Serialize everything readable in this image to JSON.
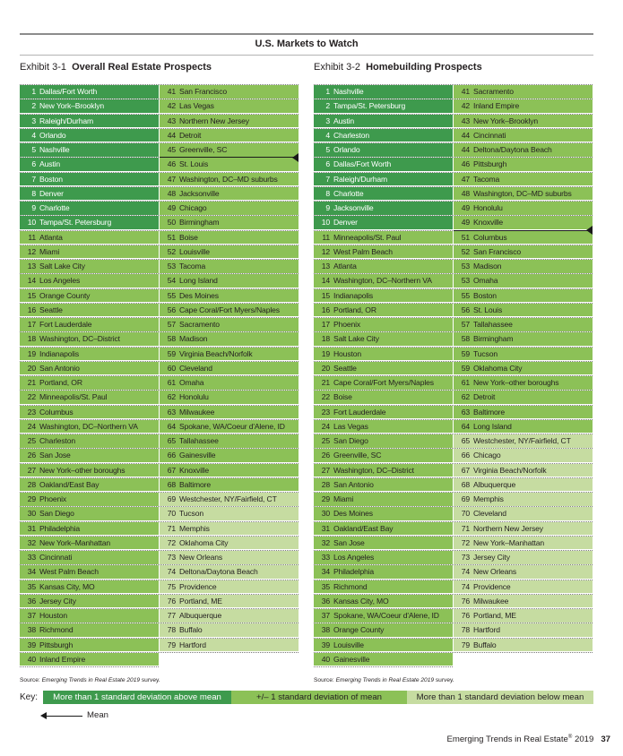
{
  "header": {
    "title": "U.S. Markets to Watch"
  },
  "exhibits": [
    {
      "number": "Exhibit 3-1",
      "title": "Overall Real Estate Prospects",
      "source_prefix": "Source: ",
      "source_title": "Emerging Trends in Real Estate 2019",
      "source_suffix": " survey.",
      "mean_after_rank": 45,
      "markets": [
        {
          "rank": "1",
          "name": "Dallas/Fort Worth",
          "tier": "above"
        },
        {
          "rank": "2",
          "name": "New York–Brooklyn",
          "tier": "above"
        },
        {
          "rank": "3",
          "name": "Raleigh/Durham",
          "tier": "above"
        },
        {
          "rank": "4",
          "name": "Orlando",
          "tier": "above"
        },
        {
          "rank": "5",
          "name": "Nashville",
          "tier": "above"
        },
        {
          "rank": "6",
          "name": "Austin",
          "tier": "above"
        },
        {
          "rank": "7",
          "name": "Boston",
          "tier": "above"
        },
        {
          "rank": "8",
          "name": "Denver",
          "tier": "above"
        },
        {
          "rank": "9",
          "name": "Charlotte",
          "tier": "above"
        },
        {
          "rank": "10",
          "name": "Tampa/St. Petersburg",
          "tier": "above"
        },
        {
          "rank": "11",
          "name": "Atlanta",
          "tier": "mid"
        },
        {
          "rank": "12",
          "name": "Miami",
          "tier": "mid"
        },
        {
          "rank": "13",
          "name": "Salt Lake City",
          "tier": "mid"
        },
        {
          "rank": "14",
          "name": "Los Angeles",
          "tier": "mid"
        },
        {
          "rank": "15",
          "name": "Orange County",
          "tier": "mid"
        },
        {
          "rank": "16",
          "name": "Seattle",
          "tier": "mid"
        },
        {
          "rank": "17",
          "name": "Fort Lauderdale",
          "tier": "mid"
        },
        {
          "rank": "18",
          "name": "Washington, DC–District",
          "tier": "mid"
        },
        {
          "rank": "19",
          "name": "Indianapolis",
          "tier": "mid"
        },
        {
          "rank": "20",
          "name": "San Antonio",
          "tier": "mid"
        },
        {
          "rank": "21",
          "name": "Portland, OR",
          "tier": "mid"
        },
        {
          "rank": "22",
          "name": "Minneapolis/St. Paul",
          "tier": "mid"
        },
        {
          "rank": "23",
          "name": "Columbus",
          "tier": "mid"
        },
        {
          "rank": "24",
          "name": "Washington, DC–Northern VA",
          "tier": "mid"
        },
        {
          "rank": "25",
          "name": "Charleston",
          "tier": "mid"
        },
        {
          "rank": "26",
          "name": "San Jose",
          "tier": "mid"
        },
        {
          "rank": "27",
          "name": "New York–other boroughs",
          "tier": "mid"
        },
        {
          "rank": "28",
          "name": "Oakland/East Bay",
          "tier": "mid"
        },
        {
          "rank": "29",
          "name": "Phoenix",
          "tier": "mid"
        },
        {
          "rank": "30",
          "name": "San Diego",
          "tier": "mid"
        },
        {
          "rank": "31",
          "name": "Philadelphia",
          "tier": "mid"
        },
        {
          "rank": "32",
          "name": "New York–Manhattan",
          "tier": "mid"
        },
        {
          "rank": "33",
          "name": "Cincinnati",
          "tier": "mid"
        },
        {
          "rank": "34",
          "name": "West Palm Beach",
          "tier": "mid"
        },
        {
          "rank": "35",
          "name": "Kansas City, MO",
          "tier": "mid"
        },
        {
          "rank": "36",
          "name": "Jersey City",
          "tier": "mid"
        },
        {
          "rank": "37",
          "name": "Houston",
          "tier": "mid"
        },
        {
          "rank": "38",
          "name": "Richmond",
          "tier": "mid"
        },
        {
          "rank": "39",
          "name": "Pittsburgh",
          "tier": "mid"
        },
        {
          "rank": "40",
          "name": "Inland Empire",
          "tier": "mid"
        },
        {
          "rank": "41",
          "name": "San Francisco",
          "tier": "mid"
        },
        {
          "rank": "42",
          "name": "Las Vegas",
          "tier": "mid"
        },
        {
          "rank": "43",
          "name": "Northern New Jersey",
          "tier": "mid"
        },
        {
          "rank": "44",
          "name": "Detroit",
          "tier": "mid"
        },
        {
          "rank": "45",
          "name": "Greenville, SC",
          "tier": "mid"
        },
        {
          "rank": "46",
          "name": "St. Louis",
          "tier": "mid"
        },
        {
          "rank": "47",
          "name": "Washington, DC–MD suburbs",
          "tier": "mid"
        },
        {
          "rank": "48",
          "name": "Jacksonville",
          "tier": "mid"
        },
        {
          "rank": "49",
          "name": "Chicago",
          "tier": "mid"
        },
        {
          "rank": "50",
          "name": "Birmingham",
          "tier": "mid"
        },
        {
          "rank": "51",
          "name": "Boise",
          "tier": "mid"
        },
        {
          "rank": "52",
          "name": "Louisville",
          "tier": "mid"
        },
        {
          "rank": "53",
          "name": "Tacoma",
          "tier": "mid"
        },
        {
          "rank": "54",
          "name": "Long Island",
          "tier": "mid"
        },
        {
          "rank": "55",
          "name": "Des Moines",
          "tier": "mid"
        },
        {
          "rank": "56",
          "name": "Cape Coral/Fort Myers/Naples",
          "tier": "mid"
        },
        {
          "rank": "57",
          "name": "Sacramento",
          "tier": "mid"
        },
        {
          "rank": "58",
          "name": "Madison",
          "tier": "mid"
        },
        {
          "rank": "59",
          "name": "Virginia Beach/Norfolk",
          "tier": "mid"
        },
        {
          "rank": "60",
          "name": "Cleveland",
          "tier": "mid"
        },
        {
          "rank": "61",
          "name": "Omaha",
          "tier": "mid"
        },
        {
          "rank": "62",
          "name": "Honolulu",
          "tier": "mid"
        },
        {
          "rank": "63",
          "name": "Milwaukee",
          "tier": "mid"
        },
        {
          "rank": "64",
          "name": "Spokane, WA/Coeur d'Alene, ID",
          "tier": "mid"
        },
        {
          "rank": "65",
          "name": "Tallahassee",
          "tier": "mid"
        },
        {
          "rank": "66",
          "name": "Gainesville",
          "tier": "mid"
        },
        {
          "rank": "67",
          "name": "Knoxville",
          "tier": "mid"
        },
        {
          "rank": "68",
          "name": "Baltimore",
          "tier": "mid"
        },
        {
          "rank": "69",
          "name": "Westchester, NY/Fairfield, CT",
          "tier": "below"
        },
        {
          "rank": "70",
          "name": "Tucson",
          "tier": "below"
        },
        {
          "rank": "71",
          "name": "Memphis",
          "tier": "below"
        },
        {
          "rank": "72",
          "name": "Oklahoma City",
          "tier": "below"
        },
        {
          "rank": "73",
          "name": "New Orleans",
          "tier": "below"
        },
        {
          "rank": "74",
          "name": "Deltona/Daytona Beach",
          "tier": "below"
        },
        {
          "rank": "75",
          "name": "Providence",
          "tier": "below"
        },
        {
          "rank": "76",
          "name": "Portland, ME",
          "tier": "below"
        },
        {
          "rank": "77",
          "name": "Albuquerque",
          "tier": "below"
        },
        {
          "rank": "78",
          "name": "Buffalo",
          "tier": "below"
        },
        {
          "rank": "79",
          "name": "Hartford",
          "tier": "below"
        }
      ]
    },
    {
      "number": "Exhibit 3-2",
      "title": "Homebuilding Prospects",
      "source_prefix": "Source: ",
      "source_title": "Emerging Trends in Real Estate 2019",
      "source_suffix": " survey.",
      "mean_after_rank": 49,
      "markets": [
        {
          "rank": "1",
          "name": "Nashville",
          "tier": "above"
        },
        {
          "rank": "2",
          "name": "Tampa/St. Petersburg",
          "tier": "above"
        },
        {
          "rank": "3",
          "name": "Austin",
          "tier": "above"
        },
        {
          "rank": "4",
          "name": "Charleston",
          "tier": "above"
        },
        {
          "rank": "5",
          "name": "Orlando",
          "tier": "above"
        },
        {
          "rank": "6",
          "name": "Dallas/Fort Worth",
          "tier": "above"
        },
        {
          "rank": "7",
          "name": "Raleigh/Durham",
          "tier": "above"
        },
        {
          "rank": "8",
          "name": "Charlotte",
          "tier": "above"
        },
        {
          "rank": "9",
          "name": "Jacksonville",
          "tier": "above"
        },
        {
          "rank": "10",
          "name": "Denver",
          "tier": "above"
        },
        {
          "rank": "11",
          "name": "Minneapolis/St. Paul",
          "tier": "mid"
        },
        {
          "rank": "12",
          "name": "West Palm Beach",
          "tier": "mid"
        },
        {
          "rank": "13",
          "name": "Atlanta",
          "tier": "mid"
        },
        {
          "rank": "14",
          "name": "Washington, DC–Northern VA",
          "tier": "mid"
        },
        {
          "rank": "15",
          "name": "Indianapolis",
          "tier": "mid"
        },
        {
          "rank": "16",
          "name": "Portland, OR",
          "tier": "mid"
        },
        {
          "rank": "17",
          "name": "Phoenix",
          "tier": "mid"
        },
        {
          "rank": "18",
          "name": "Salt Lake City",
          "tier": "mid"
        },
        {
          "rank": "19",
          "name": "Houston",
          "tier": "mid"
        },
        {
          "rank": "20",
          "name": "Seattle",
          "tier": "mid"
        },
        {
          "rank": "21",
          "name": "Cape Coral/Fort Myers/Naples",
          "tier": "mid"
        },
        {
          "rank": "22",
          "name": "Boise",
          "tier": "mid"
        },
        {
          "rank": "23",
          "name": "Fort Lauderdale",
          "tier": "mid"
        },
        {
          "rank": "24",
          "name": "Las Vegas",
          "tier": "mid"
        },
        {
          "rank": "25",
          "name": "San Diego",
          "tier": "mid"
        },
        {
          "rank": "26",
          "name": "Greenville, SC",
          "tier": "mid"
        },
        {
          "rank": "27",
          "name": "Washington, DC–District",
          "tier": "mid"
        },
        {
          "rank": "28",
          "name": "San Antonio",
          "tier": "mid"
        },
        {
          "rank": "29",
          "name": "Miami",
          "tier": "mid"
        },
        {
          "rank": "30",
          "name": "Des Moines",
          "tier": "mid"
        },
        {
          "rank": "31",
          "name": "Oakland/East Bay",
          "tier": "mid"
        },
        {
          "rank": "32",
          "name": "San Jose",
          "tier": "mid"
        },
        {
          "rank": "33",
          "name": "Los Angeles",
          "tier": "mid"
        },
        {
          "rank": "34",
          "name": "Philadelphia",
          "tier": "mid"
        },
        {
          "rank": "35",
          "name": "Richmond",
          "tier": "mid"
        },
        {
          "rank": "36",
          "name": "Kansas City, MO",
          "tier": "mid"
        },
        {
          "rank": "37",
          "name": "Spokane, WA/Coeur d'Alene, ID",
          "tier": "mid"
        },
        {
          "rank": "38",
          "name": "Orange County",
          "tier": "mid"
        },
        {
          "rank": "39",
          "name": "Louisville",
          "tier": "mid"
        },
        {
          "rank": "40",
          "name": "Gainesville",
          "tier": "mid"
        },
        {
          "rank": "41",
          "name": "Sacramento",
          "tier": "mid"
        },
        {
          "rank": "42",
          "name": "Inland Empire",
          "tier": "mid"
        },
        {
          "rank": "43",
          "name": "New York–Brooklyn",
          "tier": "mid"
        },
        {
          "rank": "44",
          "name": "Cincinnati",
          "tier": "mid"
        },
        {
          "rank": "44",
          "name": "Deltona/Daytona Beach",
          "tier": "mid"
        },
        {
          "rank": "46",
          "name": "Pittsburgh",
          "tier": "mid"
        },
        {
          "rank": "47",
          "name": "Tacoma",
          "tier": "mid"
        },
        {
          "rank": "48",
          "name": "Washington, DC–MD suburbs",
          "tier": "mid"
        },
        {
          "rank": "49",
          "name": "Honolulu",
          "tier": "mid"
        },
        {
          "rank": "49",
          "name": "Knoxville",
          "tier": "mid"
        },
        {
          "rank": "51",
          "name": "Columbus",
          "tier": "mid"
        },
        {
          "rank": "52",
          "name": "San Francisco",
          "tier": "mid"
        },
        {
          "rank": "53",
          "name": "Madison",
          "tier": "mid"
        },
        {
          "rank": "53",
          "name": "Omaha",
          "tier": "mid"
        },
        {
          "rank": "55",
          "name": "Boston",
          "tier": "mid"
        },
        {
          "rank": "56",
          "name": "St. Louis",
          "tier": "mid"
        },
        {
          "rank": "57",
          "name": "Tallahassee",
          "tier": "mid"
        },
        {
          "rank": "58",
          "name": "Birmingham",
          "tier": "mid"
        },
        {
          "rank": "59",
          "name": "Tucson",
          "tier": "mid"
        },
        {
          "rank": "59",
          "name": "Oklahoma City",
          "tier": "mid"
        },
        {
          "rank": "61",
          "name": "New York–other boroughs",
          "tier": "mid"
        },
        {
          "rank": "62",
          "name": "Detroit",
          "tier": "mid"
        },
        {
          "rank": "63",
          "name": "Baltimore",
          "tier": "mid"
        },
        {
          "rank": "64",
          "name": "Long Island",
          "tier": "mid"
        },
        {
          "rank": "65",
          "name": "Westchester, NY/Fairfield, CT",
          "tier": "below"
        },
        {
          "rank": "66",
          "name": "Chicago",
          "tier": "below"
        },
        {
          "rank": "67",
          "name": "Virginia Beach/Norfolk",
          "tier": "below"
        },
        {
          "rank": "68",
          "name": "Albuquerque",
          "tier": "below"
        },
        {
          "rank": "69",
          "name": "Memphis",
          "tier": "below"
        },
        {
          "rank": "70",
          "name": "Cleveland",
          "tier": "below"
        },
        {
          "rank": "71",
          "name": "Northern New Jersey",
          "tier": "below"
        },
        {
          "rank": "72",
          "name": "New York–Manhattan",
          "tier": "below"
        },
        {
          "rank": "73",
          "name": "Jersey City",
          "tier": "below"
        },
        {
          "rank": "74",
          "name": "New Orleans",
          "tier": "below"
        },
        {
          "rank": "74",
          "name": "Providence",
          "tier": "below"
        },
        {
          "rank": "76",
          "name": "Milwaukee",
          "tier": "below"
        },
        {
          "rank": "76",
          "name": "Portland, ME",
          "tier": "below"
        },
        {
          "rank": "78",
          "name": "Hartford",
          "tier": "below"
        },
        {
          "rank": "79",
          "name": "Buffalo",
          "tier": "below"
        }
      ]
    }
  ],
  "key": {
    "label": "Key:",
    "above": "More than 1 standard deviation above mean",
    "mid": "+/– 1 standard deviation of mean",
    "below": "More than 1 standard deviation below mean",
    "mean": "Mean"
  },
  "colors": {
    "above": "#3e9a4d",
    "mid": "#8cc157",
    "below": "#c6dca1"
  },
  "footer": {
    "publication": "Emerging Trends in Real Estate",
    "reg": "®",
    "year": " 2019",
    "page": "37"
  }
}
